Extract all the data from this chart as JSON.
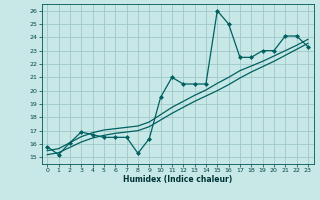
{
  "xlabel": "Humidex (Indice chaleur)",
  "background_color": "#c8e8e8",
  "grid_color": "#a0c8c8",
  "line_color": "#006060",
  "xlim": [
    -0.5,
    23.5
  ],
  "ylim": [
    14.5,
    26.5
  ],
  "xticks": [
    0,
    1,
    2,
    3,
    4,
    5,
    6,
    7,
    8,
    9,
    10,
    11,
    12,
    13,
    14,
    15,
    16,
    17,
    18,
    19,
    20,
    21,
    22,
    23
  ],
  "yticks": [
    15,
    16,
    17,
    18,
    19,
    20,
    21,
    22,
    23,
    24,
    25,
    26
  ],
  "series1_x": [
    0,
    1,
    2,
    3,
    4,
    5,
    6,
    7,
    8,
    9,
    10,
    11,
    12,
    13,
    14,
    15,
    16,
    17,
    18,
    19,
    20,
    21,
    22,
    23
  ],
  "series1_y": [
    15.8,
    15.2,
    16.1,
    16.9,
    16.7,
    16.5,
    16.5,
    16.5,
    15.3,
    16.4,
    19.5,
    21.0,
    20.5,
    20.5,
    20.5,
    26.0,
    25.0,
    22.5,
    22.5,
    23.0,
    23.0,
    24.1,
    24.1,
    23.3
  ],
  "series2_x": [
    0,
    1,
    2,
    3,
    4,
    5,
    6,
    7,
    8,
    9,
    10,
    11,
    12,
    13,
    14,
    15,
    16,
    17,
    18,
    19,
    20,
    21,
    22,
    23
  ],
  "series2_y": [
    15.5,
    15.65,
    16.1,
    16.55,
    16.85,
    17.05,
    17.15,
    17.25,
    17.35,
    17.65,
    18.2,
    18.75,
    19.2,
    19.65,
    20.05,
    20.55,
    21.0,
    21.5,
    21.85,
    22.2,
    22.6,
    23.0,
    23.4,
    23.85
  ],
  "series3_x": [
    0,
    1,
    2,
    3,
    4,
    5,
    6,
    7,
    8,
    9,
    10,
    11,
    12,
    13,
    14,
    15,
    16,
    17,
    18,
    19,
    20,
    21,
    22,
    23
  ],
  "series3_y": [
    15.2,
    15.35,
    15.75,
    16.15,
    16.45,
    16.65,
    16.8,
    16.9,
    17.0,
    17.3,
    17.8,
    18.3,
    18.75,
    19.2,
    19.6,
    20.0,
    20.45,
    20.95,
    21.4,
    21.8,
    22.2,
    22.65,
    23.1,
    23.55
  ]
}
